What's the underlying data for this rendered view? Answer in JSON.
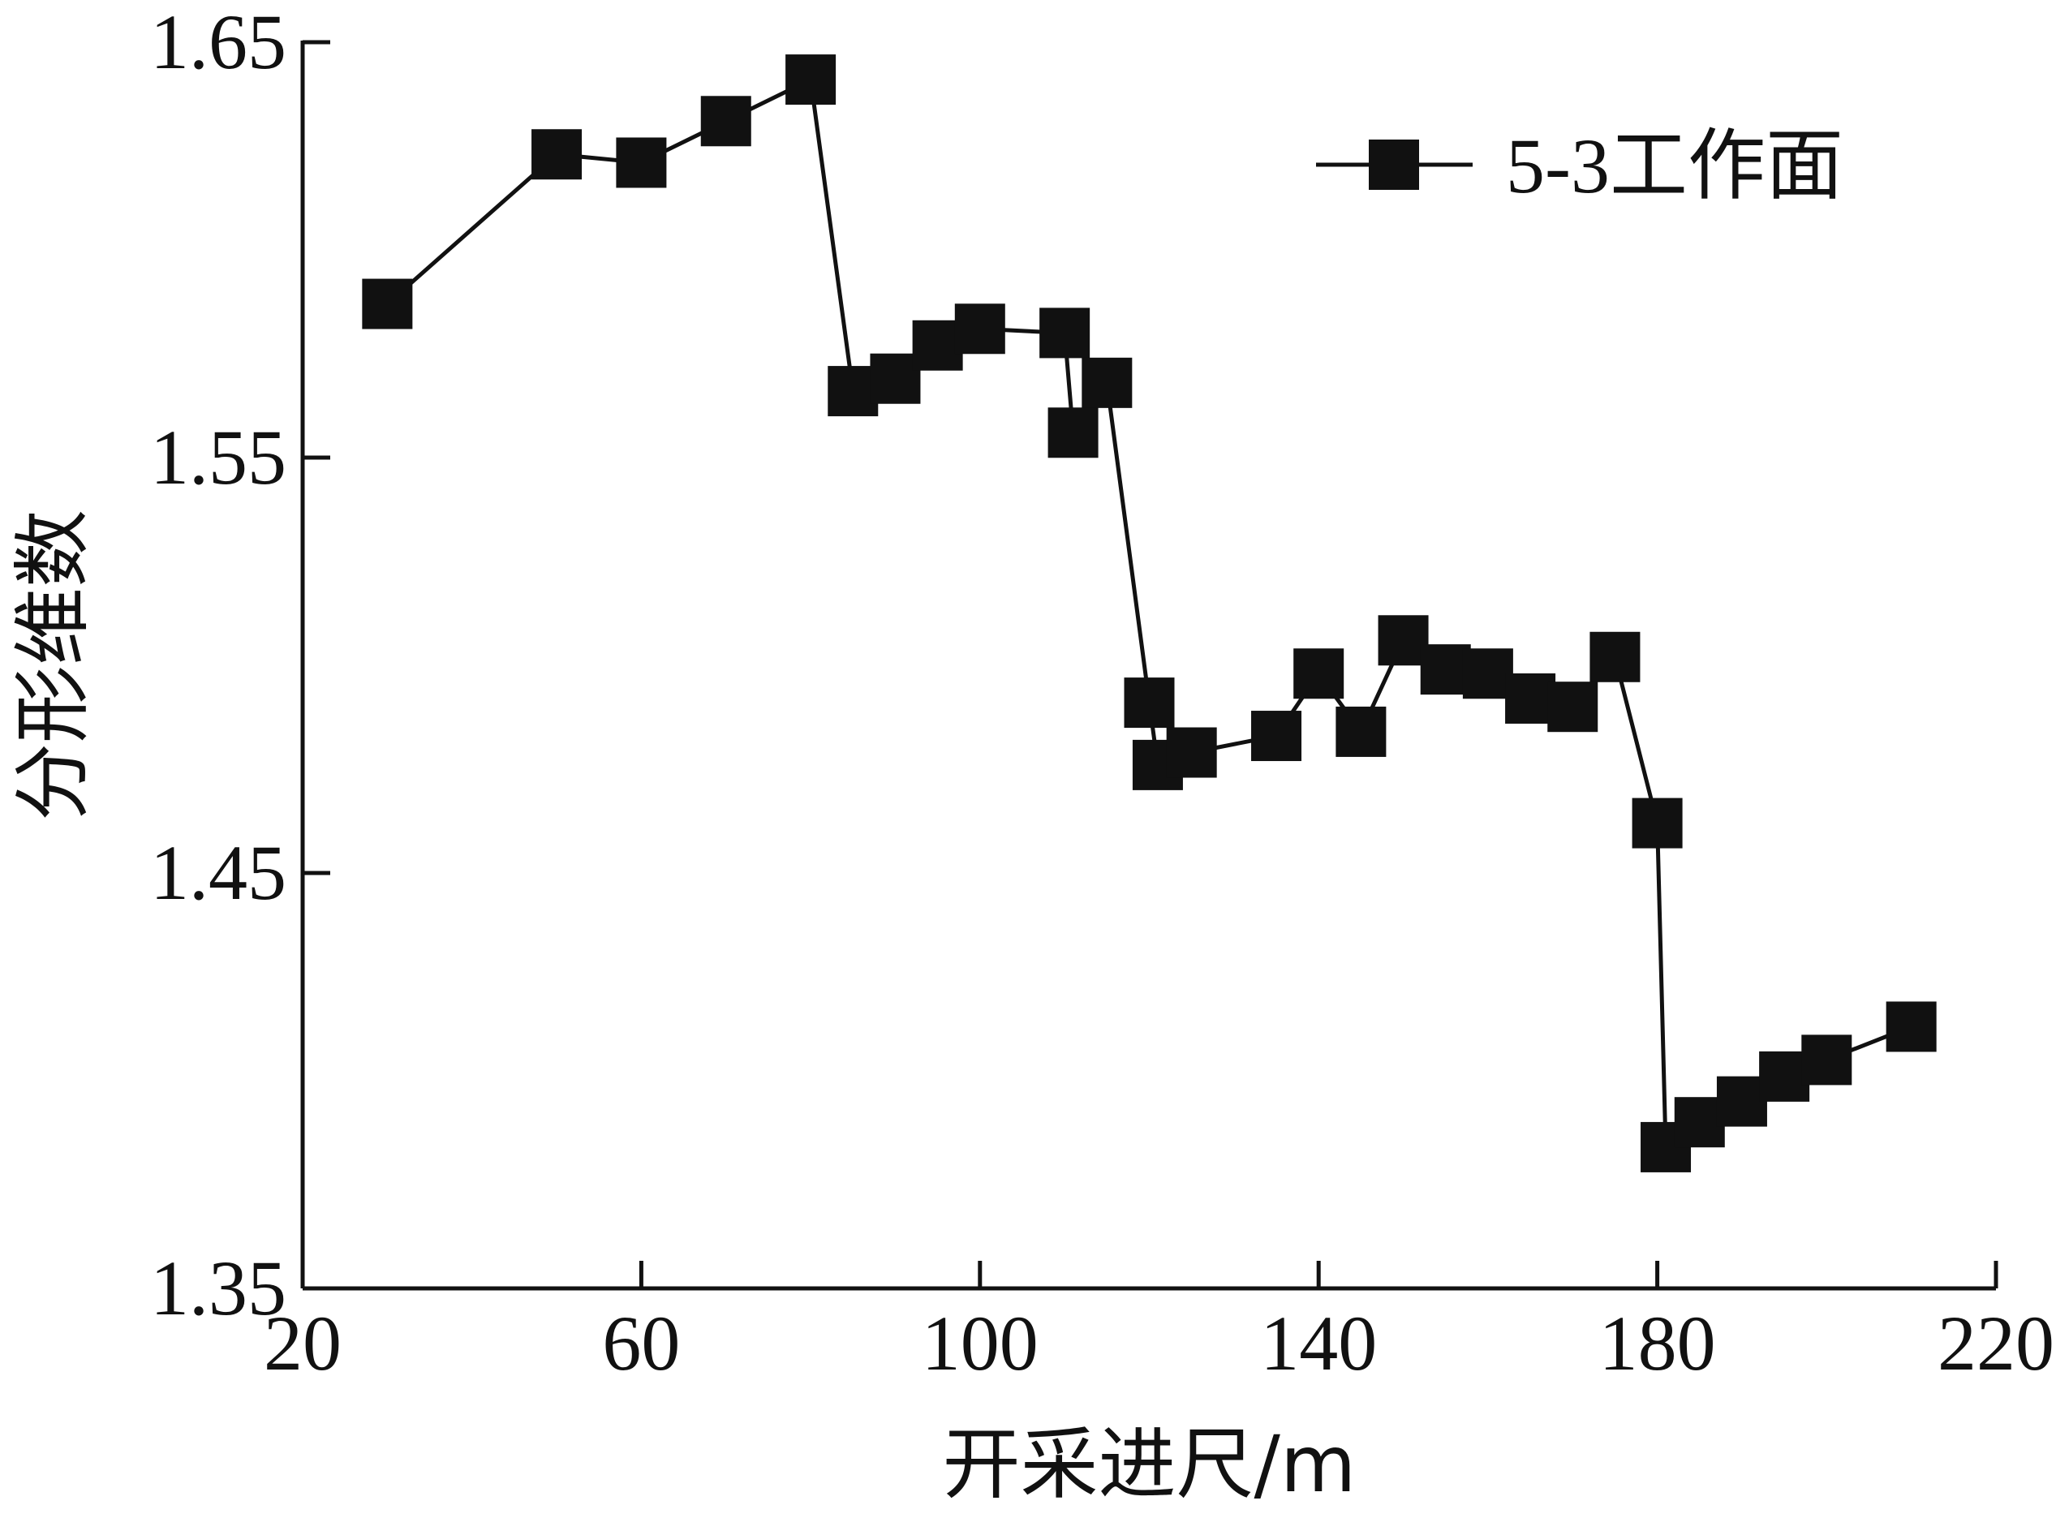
{
  "chart_data": {
    "type": "line",
    "title": "",
    "xlabel": "开采进尺/m",
    "ylabel": "分形维数",
    "xlim": [
      20,
      220
    ],
    "ylim": [
      1.35,
      1.65
    ],
    "xticks": [
      20,
      60,
      100,
      140,
      180,
      220
    ],
    "yticks": [
      1.35,
      1.45,
      1.55,
      1.65
    ],
    "xtick_labels": [
      "20",
      "60",
      "100",
      "140",
      "180",
      "220"
    ],
    "ytick_labels": [
      "1.35",
      "1.45",
      "1.55",
      "1.65"
    ],
    "grid": false,
    "legend_position": "top-right",
    "series": [
      {
        "name": "5-3工作面",
        "color": "#111111",
        "marker": "square",
        "x": [
          30,
          50,
          60,
          70,
          80,
          85,
          90,
          95,
          100,
          110,
          111,
          115,
          120,
          121,
          125,
          135,
          140,
          145,
          150,
          155,
          160,
          165,
          170,
          175,
          180,
          181,
          185,
          190,
          195,
          200,
          210
        ],
        "y": [
          1.587,
          1.623,
          1.621,
          1.631,
          1.641,
          1.566,
          1.569,
          1.577,
          1.581,
          1.58,
          1.556,
          1.568,
          1.491,
          1.476,
          1.479,
          1.483,
          1.498,
          1.484,
          1.506,
          1.499,
          1.498,
          1.492,
          1.49,
          1.502,
          1.462,
          1.384,
          1.39,
          1.395,
          1.401,
          1.405,
          1.413
        ]
      }
    ]
  }
}
